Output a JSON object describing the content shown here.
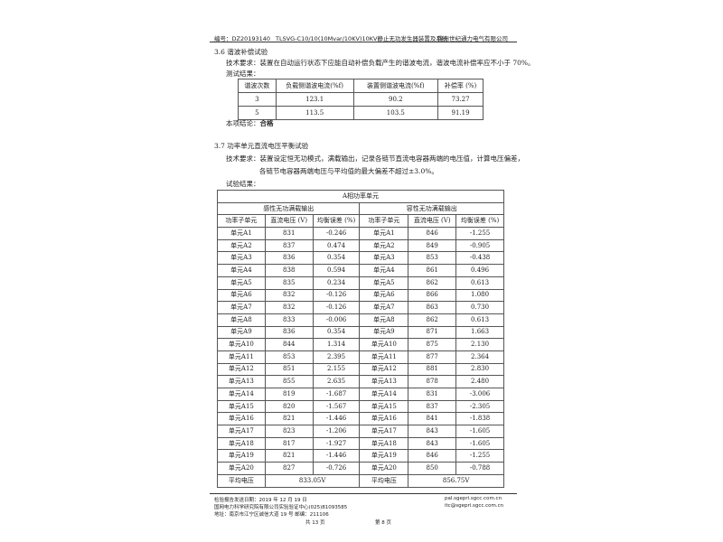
{
  "header": {
    "report_no": "编号：DZ20193140",
    "product": "TLSVG-C10/10(10Mvar/10KV)10KV静止无功发生器装置及系统",
    "company": "锦州世纪通力电气有限公司"
  },
  "s36": {
    "title": "3.6 谐波补偿试验",
    "requirement": "技术要求：装置在自动运行状态下应能自动补偿负载产生的谐波电流，谐波电流补偿率应不小于 70%。",
    "result_label": "测试结果：",
    "headers": [
      "谐波次数",
      "负载侧谐波电流(%f)",
      "装置侧谐波电流(%f)",
      "补偿率 (%)"
    ],
    "rows": [
      [
        "3",
        "123.1",
        "90.2",
        "73.27"
      ],
      [
        "5",
        "113.5",
        "103.5",
        "91.19"
      ]
    ],
    "conclusion_label": "本项结论：",
    "conclusion": "合格"
  },
  "s37": {
    "title": "3.7 功率单元直流电压平衡试验",
    "requirement1": "技术要求：装置设定恒无功模式，满载输出，记录各链节直流电容器两端的电压值，计算电压偏差，",
    "requirement2": "各链节电容器两端电压与平均值的最大偏差不超过±3.0%。",
    "result_label": "试验结果：",
    "table_title": "A相功率单元",
    "group_left": "感性无功满载输出",
    "group_right": "容性无功满载输出",
    "col_headers": [
      "功率子单元",
      "直流电压 (V)",
      "均衡误差 (%)",
      "功率子单元",
      "直流电压 (V)",
      "均衡误差 (%)"
    ],
    "rows": [
      [
        "单元A1",
        "831",
        "-0.246",
        "单元A1",
        "846",
        "-1.255"
      ],
      [
        "单元A2",
        "837",
        "0.474",
        "单元A2",
        "849",
        "-0.905"
      ],
      [
        "单元A3",
        "836",
        "0.354",
        "单元A3",
        "853",
        "-0.438"
      ],
      [
        "单元A4",
        "838",
        "0.594",
        "单元A4",
        "861",
        "0.496"
      ],
      [
        "单元A5",
        "835",
        "0.234",
        "单元A5",
        "862",
        "0.613"
      ],
      [
        "单元A6",
        "832",
        "-0.126",
        "单元A6",
        "866",
        "1.080"
      ],
      [
        "单元A7",
        "832",
        "-0.126",
        "单元A7",
        "863",
        "0.730"
      ],
      [
        "单元A8",
        "833",
        "-0.006",
        "单元A8",
        "862",
        "0.613"
      ],
      [
        "单元A9",
        "836",
        "0.354",
        "单元A9",
        "871",
        "1.663"
      ],
      [
        "单元A10",
        "844",
        "1.314",
        "单元A10",
        "875",
        "2.130"
      ],
      [
        "单元A11",
        "853",
        "2.395",
        "单元A11",
        "877",
        "2.364"
      ],
      [
        "单元A12",
        "851",
        "2.155",
        "单元A12",
        "881",
        "2.830"
      ],
      [
        "单元A13",
        "855",
        "2.635",
        "单元A13",
        "878",
        "2.480"
      ],
      [
        "单元A14",
        "819",
        "-1.687",
        "单元A14",
        "831",
        "-3.006"
      ],
      [
        "单元A15",
        "820",
        "-1.567",
        "单元A15",
        "837",
        "-2.305"
      ],
      [
        "单元A16",
        "821",
        "-1.446",
        "单元A16",
        "841",
        "-1.838"
      ],
      [
        "单元A17",
        "823",
        "-1.206",
        "单元A17",
        "843",
        "-1.605"
      ],
      [
        "单元A18",
        "817",
        "-1.927",
        "单元A18",
        "843",
        "-1.605"
      ],
      [
        "单元A19",
        "821",
        "-1.446",
        "单元A19",
        "846",
        "-1.255"
      ],
      [
        "单元A20",
        "827",
        "-0.726",
        "单元A20",
        "850",
        "-0.788"
      ]
    ],
    "avg_label": "平均电压",
    "avg_left": "833.05V",
    "avg_right": "856.75V"
  },
  "footer": {
    "issue_date": "检验报告发送日期：2019 年 12 月 19 日",
    "center": "国网电力科学研究院有限公司实验验证中心(025)81093585",
    "address": "地址：南京市江宁区诚信大道 19 号   邮编：211106",
    "web1": "pal.sgepri.sgcc.com.cn",
    "web2": "itc@sgepri.sgcc.com.cn",
    "total_pages": "共  13  页",
    "page": "第  8  页"
  }
}
